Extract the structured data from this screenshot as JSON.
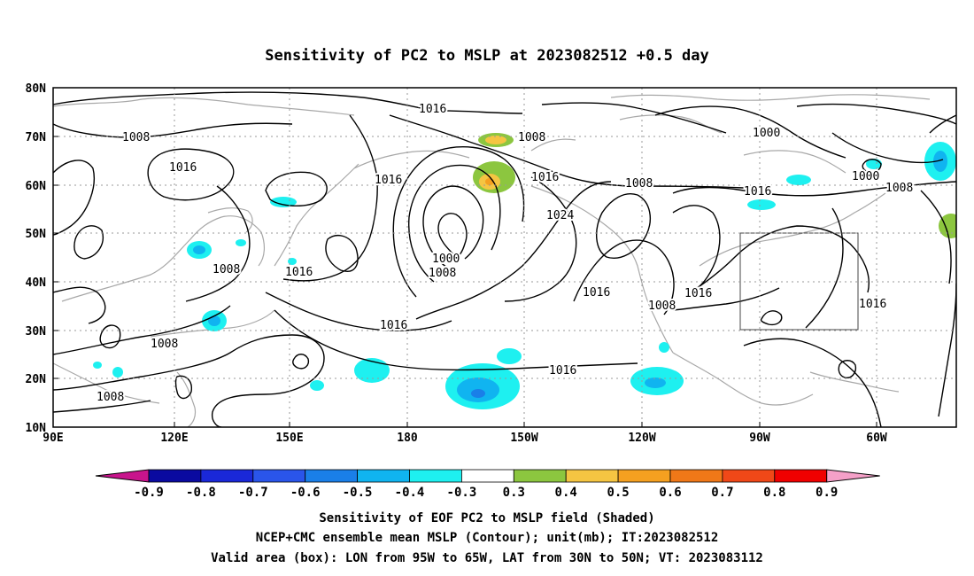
{
  "title": "Sensitivity of PC2 to MSLP at 2023082512 +0.5 day",
  "lat_labels": [
    "80N",
    "70N",
    "60N",
    "50N",
    "40N",
    "30N",
    "20N",
    "10N"
  ],
  "lon_labels": [
    "90E",
    "120E",
    "150E",
    "180",
    "150W",
    "120W",
    "90W",
    "60W"
  ],
  "contour_labels": [
    "1016",
    "1008",
    "1008",
    "1016",
    "1016",
    "1000",
    "1016",
    "1008",
    "1000",
    "1016",
    "1000",
    "1008",
    "1024",
    "1000",
    "1008",
    "1008",
    "1016",
    "1016",
    "1016",
    "1008",
    "1016",
    "1016",
    "1008",
    "1008"
  ],
  "colorbar": {
    "labels": [
      "-0.9",
      "-0.8",
      "-0.7",
      "-0.6",
      "-0.5",
      "-0.4",
      "-0.3",
      "0.3",
      "0.4",
      "0.5",
      "0.6",
      "0.7",
      "0.8",
      "0.9"
    ],
    "colors": [
      "#0a0aa0",
      "#1a28d8",
      "#2a55ea",
      "#1a7fe8",
      "#10b4f0",
      "#1ef0f0",
      "#ffffff",
      "#8cc63f",
      "#f5c542",
      "#f5a020",
      "#f07818",
      "#f04818",
      "#f00000"
    ],
    "low_color": "#c8148c",
    "high_color": "#f5a0c8"
  },
  "captions": [
    "Sensitivity of EOF PC2 to MSLP field (Shaded)",
    "NCEP+CMC ensemble mean MSLP (Contour); unit(mb); IT:2023082512",
    "Valid area (box): LON from 95W to 65W, LAT from 30N to 50N; VT: 2023083112"
  ]
}
